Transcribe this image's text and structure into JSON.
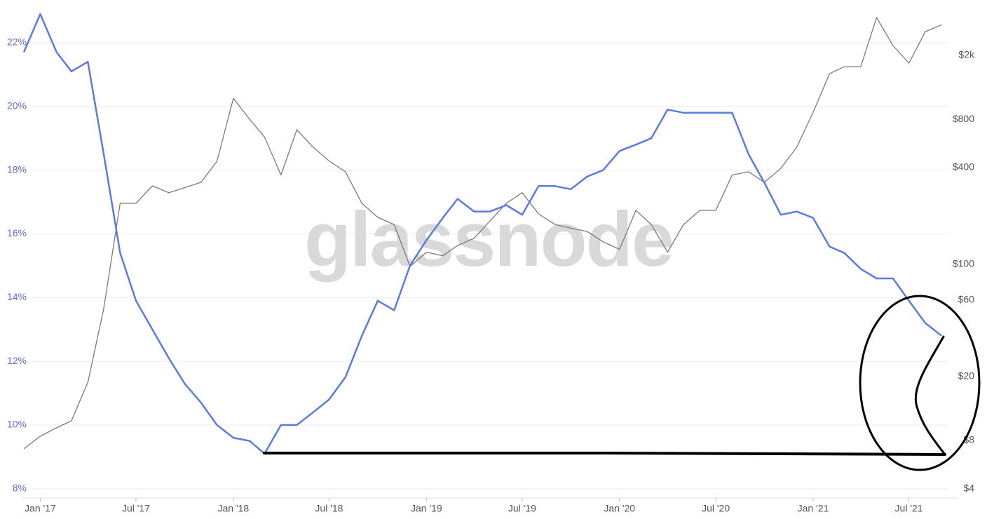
{
  "chart_data": {
    "type": "line",
    "watermark": "glassnode",
    "x": [
      "2016-12",
      "2017-01",
      "2017-02",
      "2017-03",
      "2017-04",
      "2017-05",
      "2017-06",
      "2017-07",
      "2017-08",
      "2017-09",
      "2017-10",
      "2017-11",
      "2017-12",
      "2018-01",
      "2018-02",
      "2018-03",
      "2018-04",
      "2018-05",
      "2018-06",
      "2018-07",
      "2018-08",
      "2018-09",
      "2018-10",
      "2018-11",
      "2018-12",
      "2019-01",
      "2019-02",
      "2019-03",
      "2019-04",
      "2019-05",
      "2019-06",
      "2019-07",
      "2019-08",
      "2019-09",
      "2019-10",
      "2019-11",
      "2019-12",
      "2020-01",
      "2020-02",
      "2020-03",
      "2020-04",
      "2020-05",
      "2020-06",
      "2020-07",
      "2020-08",
      "2020-09",
      "2020-10",
      "2020-11",
      "2020-12",
      "2021-01",
      "2021-02",
      "2021-03",
      "2021-04",
      "2021-05",
      "2021-06",
      "2021-07",
      "2021-08",
      "2021-09"
    ],
    "xlim": [
      "2016-12",
      "2021-10"
    ],
    "xticks": [
      {
        "value": "2017-01",
        "label": "Jan '17"
      },
      {
        "value": "2017-07",
        "label": "Jul '17"
      },
      {
        "value": "2018-01",
        "label": "Jan '18"
      },
      {
        "value": "2018-07",
        "label": "Jul '18"
      },
      {
        "value": "2019-01",
        "label": "Jan '19"
      },
      {
        "value": "2019-07",
        "label": "Jul '19"
      },
      {
        "value": "2020-01",
        "label": "Jan '20"
      },
      {
        "value": "2020-07",
        "label": "Jul '20"
      },
      {
        "value": "2021-01",
        "label": "Jan '21"
      },
      {
        "value": "2021-07",
        "label": "Jul '21"
      }
    ],
    "ylim": [
      7.82,
      23.12
    ],
    "yticks": [
      {
        "value": 8,
        "label": "8%"
      },
      {
        "value": 10,
        "label": "10%"
      },
      {
        "value": 12,
        "label": "12%"
      },
      {
        "value": 14,
        "label": "14%"
      },
      {
        "value": 16,
        "label": "16%"
      },
      {
        "value": 18,
        "label": "18%"
      },
      {
        "value": 20,
        "label": "20%"
      },
      {
        "value": 22,
        "label": "22%"
      }
    ],
    "y2lim": [
      3.69,
      4000
    ],
    "y2log": true,
    "y2ticks": [
      {
        "value": 4,
        "label": "$4"
      },
      {
        "value": 8,
        "label": "$8"
      },
      {
        "value": 20,
        "label": "$20"
      },
      {
        "value": 60,
        "label": "$60"
      },
      {
        "value": 100,
        "label": "$100"
      },
      {
        "value": 400,
        "label": "$400"
      },
      {
        "value": 800,
        "label": "$800"
      },
      {
        "value": 2000,
        "label": "$2k"
      }
    ],
    "grid": true,
    "series": [
      {
        "color": "#7a7a7a",
        "axis": "y2",
        "values": [
          7.1,
          8.5,
          9.6,
          10.6,
          18.4,
          53,
          240,
          240,
          308,
          279,
          300,
          324,
          438,
          1080,
          800,
          620,
          360,
          688,
          536,
          440,
          377,
          240,
          196,
          177,
          97,
          119,
          113,
          131,
          145,
          186,
          240,
          279,
          206,
          177,
          168,
          160,
          138,
          124,
          217,
          177,
          119,
          177,
          217,
          217,
          360,
          377,
          324,
          396,
          536,
          885,
          1538,
          1700,
          1700,
          3440,
          2300,
          1790,
          2810,
          3100
        ]
      },
      {
        "color": "#5b7be0",
        "values": [
          21.7,
          22.9,
          21.7,
          21.1,
          21.4,
          18.5,
          15.4,
          13.9,
          13.0,
          12.1,
          11.3,
          10.7,
          10.0,
          9.6,
          9.5,
          9.1,
          10.0,
          10.0,
          10.4,
          10.8,
          11.5,
          12.8,
          13.9,
          13.6,
          15.0,
          15.8,
          16.5,
          17.1,
          16.7,
          16.7,
          16.9,
          16.6,
          17.5,
          17.5,
          17.4,
          17.8,
          18.0,
          18.6,
          18.8,
          19.0,
          19.9,
          19.8,
          19.8,
          19.8,
          19.8,
          18.5,
          17.6,
          16.6,
          16.7,
          16.5,
          15.6,
          15.4,
          14.9,
          14.6,
          14.6,
          13.9,
          13.2,
          12.8
        ]
      }
    ]
  }
}
